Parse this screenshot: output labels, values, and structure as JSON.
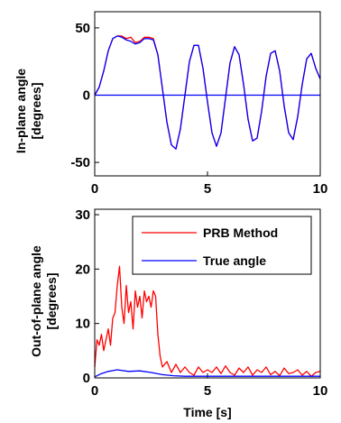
{
  "chart_data": [
    {
      "type": "line",
      "ylabel_line1": "In-plane angle",
      "ylabel_line2": "[degrees]",
      "xlabel": "",
      "xlim": [
        0,
        10
      ],
      "ylim": [
        -60,
        62
      ],
      "xticks": [
        0,
        5,
        10
      ],
      "yticks": [
        50,
        0,
        -50
      ],
      "grid": false,
      "series": [
        {
          "color": "#ff0000",
          "x": [
            0,
            0.2,
            0.4,
            0.6,
            0.8,
            1.0,
            1.2,
            1.4,
            1.6,
            1.8,
            2.0,
            2.2,
            2.4,
            2.6,
            2.8,
            3.0,
            3.2,
            3.4,
            3.6,
            3.8,
            4.0,
            4.2,
            4.4,
            4.6,
            4.8,
            5.0,
            5.2,
            5.4,
            5.6,
            5.8,
            6.0,
            6.2,
            6.4,
            6.6,
            6.8,
            7.0,
            7.2,
            7.4,
            7.6,
            7.8,
            8.0,
            8.2,
            8.4,
            8.6,
            8.8,
            9.0,
            9.2,
            9.4,
            9.6,
            9.8,
            10.0
          ],
          "y": [
            0,
            6,
            18,
            33,
            42,
            44,
            44,
            42,
            43,
            39,
            40,
            43,
            43,
            42,
            30,
            5,
            -20,
            -37,
            -40,
            -25,
            0,
            25,
            37,
            37,
            20,
            -5,
            -28,
            -38,
            -28,
            -2,
            24,
            36,
            30,
            8,
            -18,
            -34,
            -32,
            -12,
            14,
            31,
            33,
            18,
            -8,
            -28,
            -33,
            -16,
            8,
            27,
            31,
            20,
            12
          ]
        },
        {
          "color": "#0000ff",
          "x": [
            0,
            0.2,
            0.4,
            0.6,
            0.8,
            1.0,
            1.2,
            1.4,
            1.6,
            1.8,
            2.0,
            2.2,
            2.4,
            2.6,
            2.8,
            3.0,
            3.2,
            3.4,
            3.6,
            3.8,
            4.0,
            4.2,
            4.4,
            4.6,
            4.8,
            5.0,
            5.2,
            5.4,
            5.6,
            5.8,
            6.0,
            6.2,
            6.4,
            6.6,
            6.8,
            7.0,
            7.2,
            7.4,
            7.6,
            7.8,
            8.0,
            8.2,
            8.4,
            8.6,
            8.8,
            9.0,
            9.2,
            9.4,
            9.6,
            9.8,
            10.0
          ],
          "y": [
            0,
            6,
            18,
            33,
            42,
            44,
            43,
            41,
            40,
            38,
            39,
            42,
            42,
            41,
            30,
            5,
            -20,
            -37,
            -40,
            -25,
            0,
            25,
            37,
            37,
            20,
            -5,
            -28,
            -38,
            -28,
            -2,
            24,
            36,
            30,
            8,
            -18,
            -34,
            -32,
            -12,
            14,
            31,
            33,
            18,
            -8,
            -28,
            -33,
            -16,
            8,
            27,
            31,
            20,
            12
          ]
        },
        {
          "color": "#0000ff",
          "x": [
            0,
            10
          ],
          "y": [
            0,
            0
          ]
        }
      ]
    },
    {
      "type": "line",
      "ylabel_line1": "Out-of-plane angle",
      "ylabel_line2": "[degrees]",
      "xlabel": "Time [s]",
      "xlim": [
        0,
        10
      ],
      "ylim": [
        0,
        31
      ],
      "xticks": [
        0,
        5,
        10
      ],
      "yticks": [
        30,
        20,
        10,
        0
      ],
      "grid": false,
      "legend_placement": "top-right",
      "series": [
        {
          "name": "PRB Method",
          "color": "#ff0000",
          "x": [
            0,
            0.1,
            0.2,
            0.3,
            0.4,
            0.5,
            0.6,
            0.7,
            0.8,
            0.9,
            1.0,
            1.1,
            1.2,
            1.3,
            1.4,
            1.5,
            1.6,
            1.7,
            1.8,
            1.9,
            2.0,
            2.1,
            2.2,
            2.3,
            2.4,
            2.5,
            2.6,
            2.7,
            2.8,
            2.9,
            3.0,
            3.2,
            3.4,
            3.6,
            3.8,
            4.0,
            4.2,
            4.4,
            4.6,
            4.8,
            5.0,
            5.2,
            5.4,
            5.6,
            5.8,
            6.0,
            6.2,
            6.4,
            6.6,
            6.8,
            7.0,
            7.2,
            7.4,
            7.6,
            7.8,
            8.0,
            8.2,
            8.4,
            8.6,
            8.8,
            9.0,
            9.2,
            9.4,
            9.6,
            9.8,
            10.0
          ],
          "y": [
            2,
            7,
            6,
            8,
            5,
            7,
            9,
            6,
            11,
            12,
            17,
            20.5,
            13,
            10,
            17,
            12,
            14,
            9,
            16,
            13,
            15,
            11,
            16,
            14,
            15,
            13,
            16,
            15,
            8,
            4,
            2,
            3,
            1,
            2.5,
            1,
            2,
            1,
            0.5,
            2,
            1,
            1.5,
            1,
            2,
            0.8,
            2.2,
            1,
            0.5,
            1.8,
            1,
            2,
            0.5,
            1.5,
            1,
            2,
            0.6,
            1.2,
            0.4,
            1.8,
            0.8,
            1,
            1.5,
            0.5,
            1.2,
            0.3,
            1,
            1.2
          ]
        },
        {
          "name": "True angle",
          "color": "#0000ff",
          "x": [
            0,
            0.3,
            0.6,
            1.0,
            1.5,
            2.0,
            2.5,
            3.0,
            3.5,
            4.0,
            5.0,
            6.0,
            7.0,
            8.0,
            9.0,
            10.0
          ],
          "y": [
            0.2,
            0.8,
            1.2,
            1.5,
            1.2,
            1.3,
            1.0,
            0.6,
            0.4,
            0.3,
            0.3,
            0.3,
            0.3,
            0.3,
            0.3,
            0.3
          ]
        }
      ]
    }
  ]
}
